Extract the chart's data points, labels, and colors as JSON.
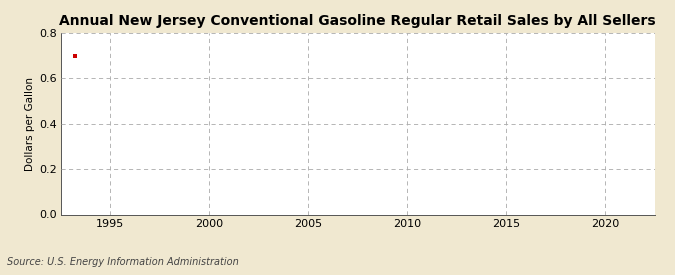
{
  "title": "Annual New Jersey Conventional Gasoline Regular Retail Sales by All Sellers",
  "ylabel": "Dollars per Gallon",
  "source": "Source: U.S. Energy Information Administration",
  "xlim": [
    1992.5,
    2022.5
  ],
  "ylim": [
    0.0,
    0.8
  ],
  "yticks": [
    0.0,
    0.2,
    0.4,
    0.6,
    0.8
  ],
  "xticks": [
    1995,
    2000,
    2005,
    2010,
    2015,
    2020
  ],
  "data_x": [
    1993.2
  ],
  "data_y": [
    0.697
  ],
  "point_color": "#cc0000",
  "outer_bg": "#f0e8d0",
  "plot_bg": "#ffffff",
  "grid_color": "#aaaaaa",
  "spine_color": "#555555",
  "title_fontsize": 10,
  "label_fontsize": 7.5,
  "tick_fontsize": 8,
  "source_fontsize": 7
}
